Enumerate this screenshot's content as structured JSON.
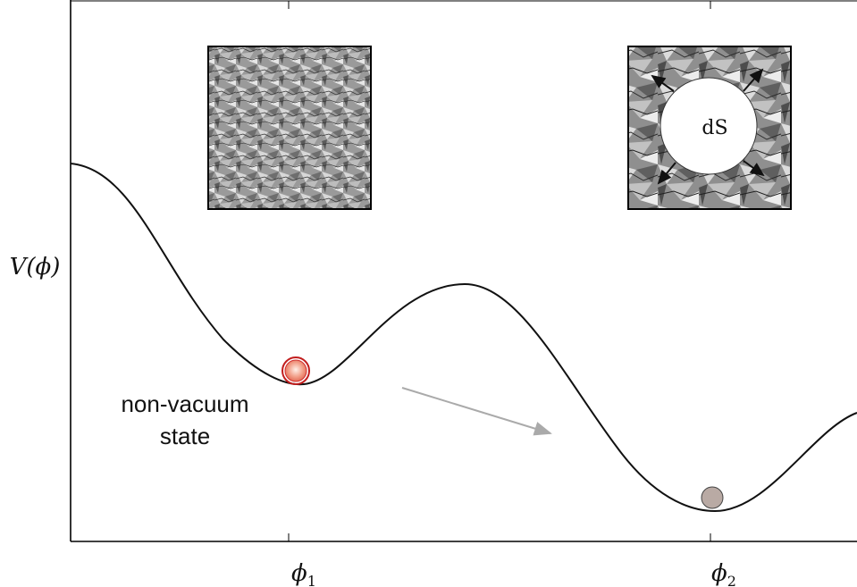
{
  "axes": {
    "ylabel": "V(ϕ)",
    "ticks": [
      {
        "label": "ϕ",
        "sub": "1"
      },
      {
        "label": "ϕ",
        "sub": "2"
      }
    ]
  },
  "annotations": {
    "state_line1": "non-vacuum",
    "state_line2": "state",
    "bubble_label": "dS"
  },
  "colors": {
    "curve": "#111111",
    "arrow": "#aaaaaa",
    "ball_top": "#e03a3a",
    "ball_bottom": "#b9aaa4"
  },
  "icons": [
    "false-vacuum-texture-panel",
    "ds-bubble-nucleation-panel"
  ]
}
